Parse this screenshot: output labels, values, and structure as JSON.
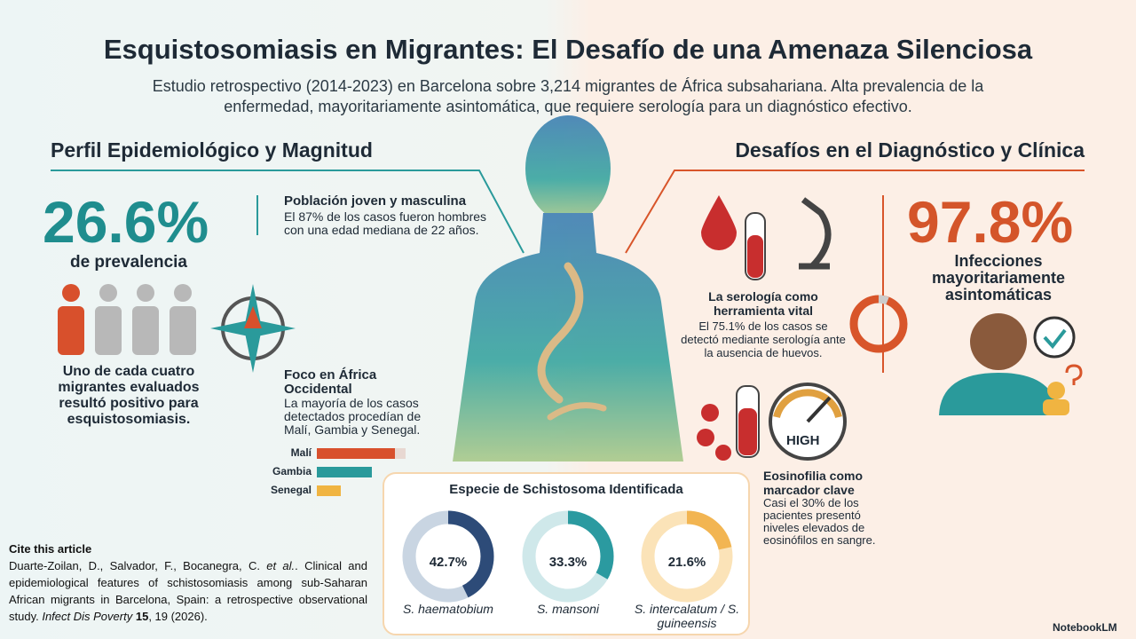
{
  "title": "Esquistosomiasis en Migrantes: El Desafío de una Amenaza Silenciosa",
  "subtitle": "Estudio retrospectivo (2014-2023) en Barcelona sobre 3,214 migrantes de África subsahariana. Alta prevalencia de la enfermedad, mayoritariamente asintomática, que requiere serología para un diagnóstico efectivo.",
  "left": {
    "heading": "Perfil Epidemiológico y Magnitud",
    "stat": "26.6%",
    "stat_label": "de prevalencia",
    "stat_text": "Uno de cada cuatro migrantes evaluados resultó positivo para esquistosomiasis.",
    "points": [
      {
        "title": "Población joven y masculina",
        "text": "El 87% de los casos fueron hombres con una edad mediana de 22 años."
      },
      {
        "title": "Foco en África Occidental",
        "text": "La mayoría de los casos detectados procedían de Malí, Gambia y Senegal."
      }
    ],
    "countries": {
      "categories": [
        "Malí",
        "Gambia",
        "Senegal"
      ],
      "values": [
        88,
        62,
        27
      ],
      "colors": [
        "#d8502c",
        "#2a9a9b",
        "#f0b441"
      ],
      "xlim": [
        0,
        100
      ]
    }
  },
  "right": {
    "heading": "Desafíos en el Diagnóstico y Clínica",
    "stat": "97.8%",
    "stat_label": "Infecciones mayoritariamente asintomáticas",
    "points": [
      {
        "title": "La serología como herramienta vital",
        "text": "El 75.1% de los casos se detectó mediante serología ante la ausencia de huevos."
      },
      {
        "title": "Eosinofilia como marcador clave",
        "text": "Casi el 30% de los pacientes presentó niveles elevados de eosinófilos en sangre."
      }
    ],
    "gauge_label": "HIGH"
  },
  "species": {
    "title": "Especie de Schistosoma Identificada",
    "items": [
      {
        "name": "S. haematobium",
        "value": 42.7,
        "label": "42.7%",
        "color": "#2d4b78",
        "track": "#c9d5e2"
      },
      {
        "name": "S. mansoni",
        "value": 33.3,
        "label": "33.3%",
        "color": "#2b9aa0",
        "track": "#cfe8ea"
      },
      {
        "name": "S. intercalatum / S. guineensis",
        "value": 21.6,
        "label": "21.6%",
        "color": "#f2b552",
        "track": "#fbe3b8"
      }
    ]
  },
  "citation": {
    "heading": "Cite this article",
    "authors": "Duarte-Zoilan, D., Salvador, F., Bocanegra, C.",
    "etal": "et al.",
    "body": ". Clinical and epidemiological features of schistosomiasis among sub-Saharan African migrants in Barcelona, Spain: a retrospective observational study.",
    "journal": "Infect Dis Poverty",
    "volume": "15",
    "rest": ", 19 (2026)."
  },
  "brand": "NotebookLM"
}
